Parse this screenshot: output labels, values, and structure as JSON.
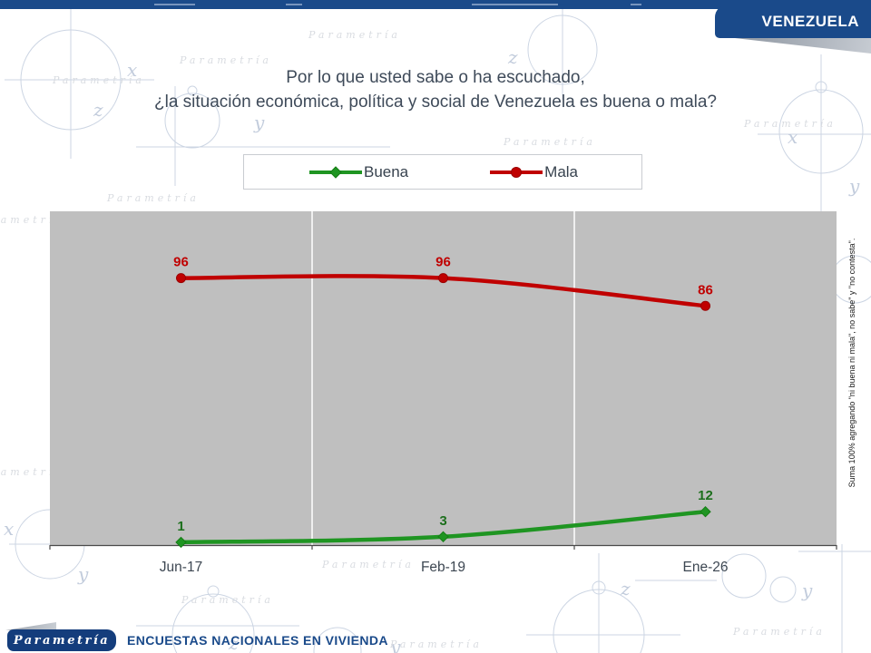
{
  "header": {
    "region_label": "VENEZUELA"
  },
  "title": {
    "line1": "Por lo que usted sabe o ha escuchado,",
    "line2": "¿la situación económica, política y social de Venezuela es buena o mala?"
  },
  "chart_data": {
    "type": "line",
    "title": "Por lo que usted sabe o ha escuchado, ¿la situación económica, política y social de Venezuela es buena o mala?",
    "categories": [
      "Jun-17",
      "Feb-19",
      "Ene-26"
    ],
    "series": [
      {
        "name": "Buena",
        "values": [
          1,
          3,
          12
        ],
        "color": "#1F9522",
        "marker": "diamond",
        "marker_color": "#157C15",
        "label_color": "#1D6F1D"
      },
      {
        "name": "Mala",
        "values": [
          96,
          96,
          86
        ],
        "color": "#C00000",
        "marker": "circle",
        "marker_color": "#9A0000",
        "label_color": "#C00000"
      }
    ],
    "xlabel": "",
    "ylabel": "",
    "ylim": [
      0,
      120
    ],
    "y_axis_labels_visible": false,
    "data_labels": true,
    "plot_background": "#BFBFBF",
    "gridlines": {
      "vertical": "white lines at category boundaries",
      "horizontal": "none"
    },
    "legend_position": "top"
  },
  "note": {
    "text": "Suma 100% agregando \"ni buena ni mala\", no sabe\" y \"no contesta\"."
  },
  "footer": {
    "logo_text": "Parametría",
    "caption": "ENCUESTAS NACIONALES EN VIVIENDA"
  },
  "colors": {
    "brand_navy": "#1A4A8A",
    "title_text": "#3E4A59",
    "plot_background": "#BFBFBF",
    "axis_line": "#4A4A4A",
    "gridline": "#FFFFFF"
  }
}
